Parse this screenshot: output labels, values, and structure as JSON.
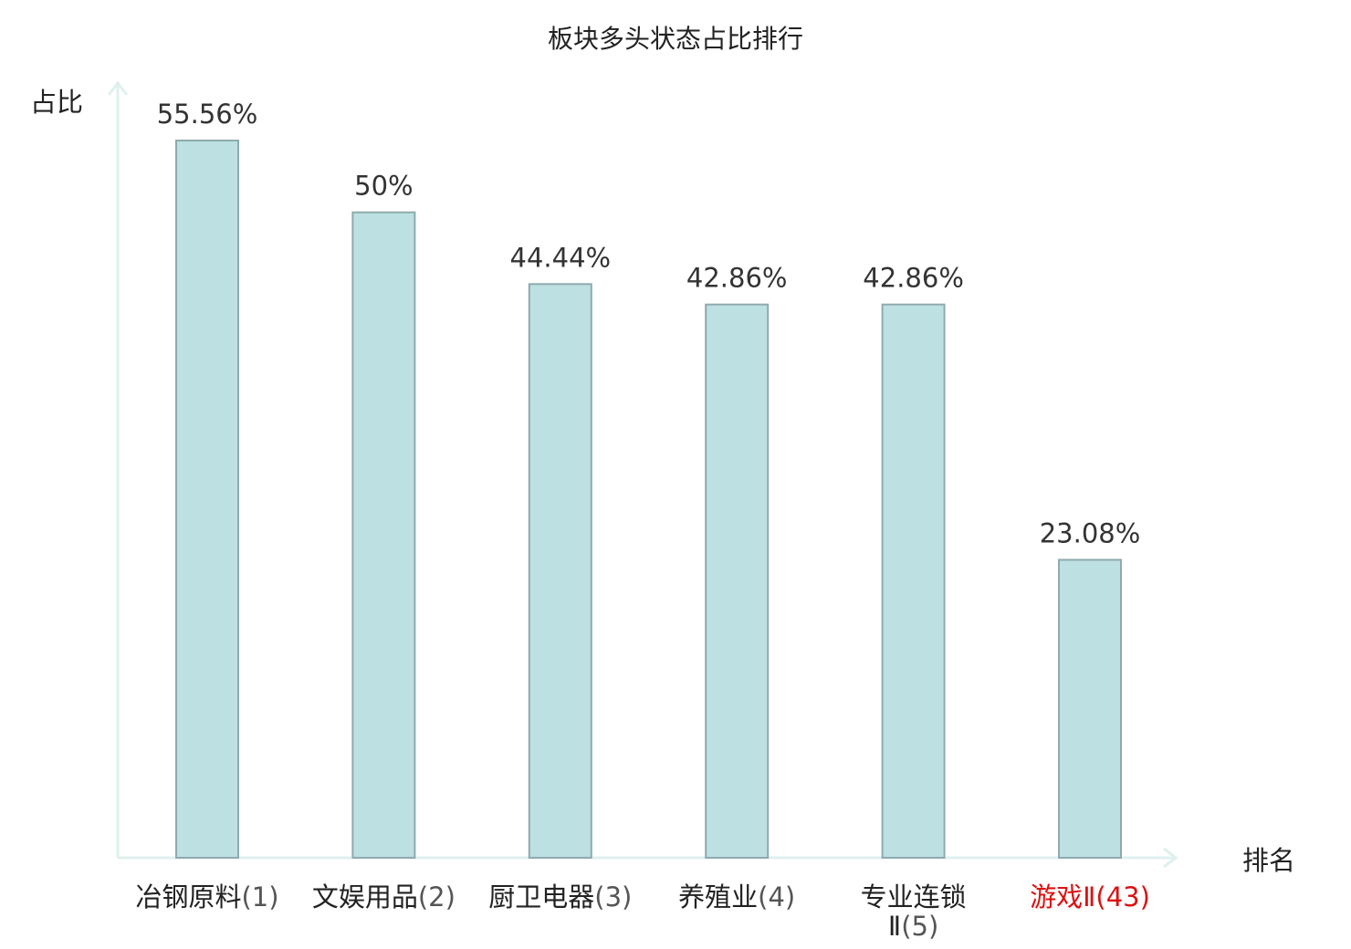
{
  "chart_data": {
    "type": "bar",
    "title": "板块多头状态占比排行",
    "xlabel": "排名",
    "ylabel": "占比",
    "categories": [
      {
        "name": "冶钢原料",
        "rank": "(1)",
        "highlight": false
      },
      {
        "name": "文娱用品",
        "rank": "(2)",
        "highlight": false
      },
      {
        "name": "厨卫电器",
        "rank": "(3)",
        "highlight": false
      },
      {
        "name": "养殖业",
        "rank": "(4)",
        "highlight": false
      },
      {
        "name": "专业连锁",
        "name_line2": "Ⅱ",
        "rank": "(5)",
        "highlight": false
      },
      {
        "name": "游戏Ⅱ",
        "rank": "(43)",
        "highlight": true
      }
    ],
    "values": [
      55.56,
      50,
      44.44,
      42.86,
      42.86,
      23.08
    ],
    "value_labels": [
      "55.56%",
      "50%",
      "44.44%",
      "42.86%",
      "42.86%",
      "23.08%"
    ],
    "ylim": [
      0,
      60
    ],
    "grid": false,
    "colors": {
      "bar_fill": "#bde0e3",
      "bar_stroke": "#8faaae",
      "axis": "#dff0ee",
      "highlight": "#dd1111"
    }
  }
}
